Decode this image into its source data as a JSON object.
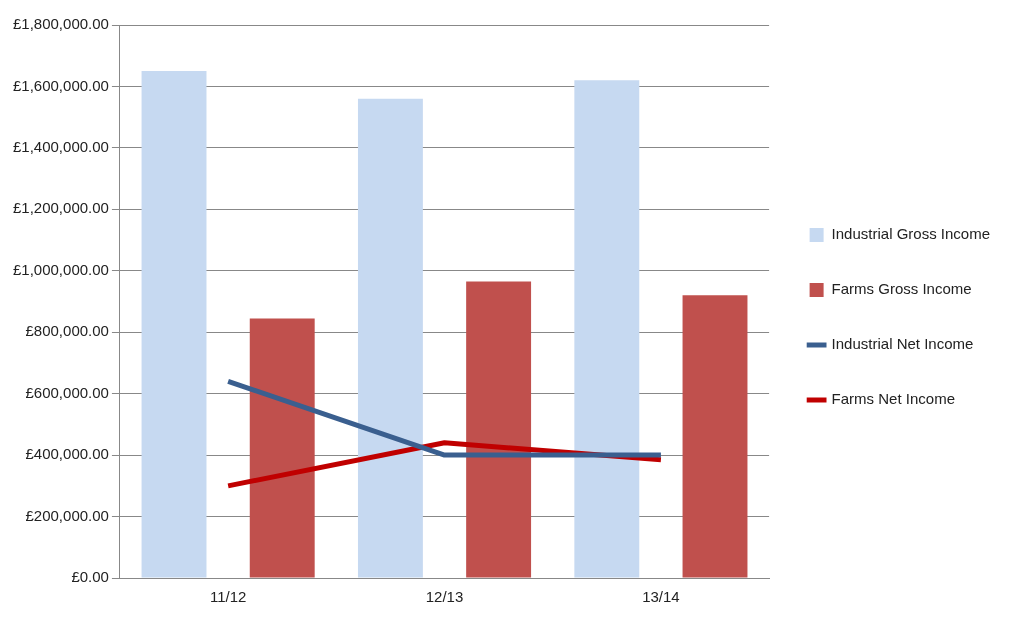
{
  "chart_data": {
    "type": "bar",
    "categories": [
      "11/12",
      "12/13",
      "13/14"
    ],
    "series": [
      {
        "name": "Industrial Gross Income",
        "color": "#c6d9f1",
        "values": [
          1650000,
          1560000,
          1620000
        ]
      },
      {
        "name": "Farms Gross Income",
        "color": "#c0504d",
        "values": [
          845000,
          965000,
          920000
        ]
      },
      {
        "name": "Industrial Net Income",
        "type": "line",
        "color": "#3a5f8f",
        "values": [
          640000,
          400000,
          400000
        ]
      },
      {
        "name": "Farms Net Income",
        "type": "line",
        "color": "#c00000",
        "values": [
          300000,
          440000,
          385000
        ]
      }
    ],
    "ylim": [
      0,
      1800000
    ],
    "yticks": [
      {
        "value": 0,
        "label": "£0.00"
      },
      {
        "value": 200000,
        "label": "£200,000.00"
      },
      {
        "value": 400000,
        "label": "£400,000.00"
      },
      {
        "value": 600000,
        "label": "£600,000.00"
      },
      {
        "value": 800000,
        "label": "£800,000.00"
      },
      {
        "value": 1000000,
        "label": "£1,000,000.00"
      },
      {
        "value": 1200000,
        "label": "£1,200,000.00"
      },
      {
        "value": 1400000,
        "label": "£1,400,000.00"
      },
      {
        "value": 1600000,
        "label": "£1,600,000.00"
      },
      {
        "value": 1800000,
        "label": "£1,800,000.00"
      }
    ],
    "grid": "y",
    "legend": "right",
    "marker": "none",
    "line_style": "solid"
  }
}
